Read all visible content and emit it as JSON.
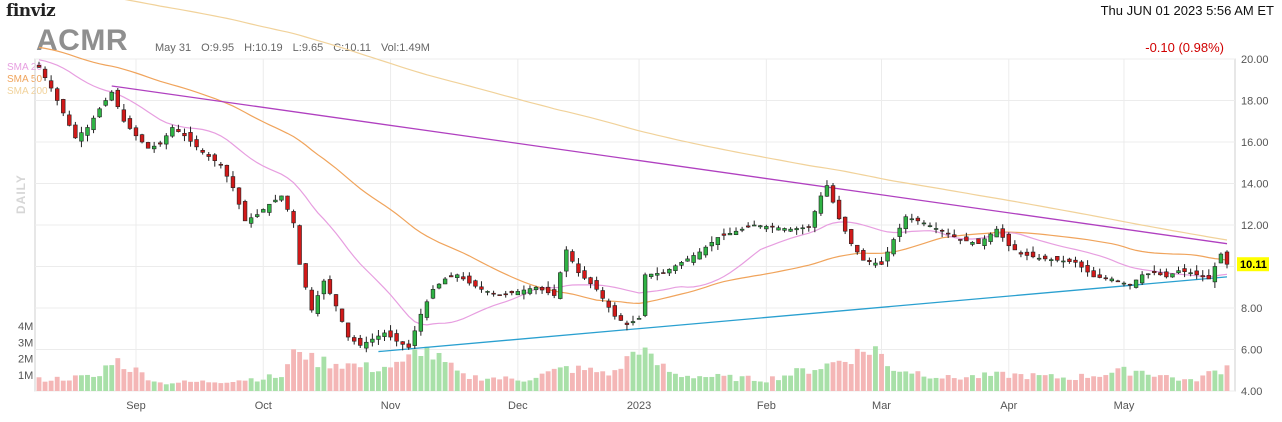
{
  "header": {
    "brand": "finviz",
    "datetime": "Thu JUN 01 2023 5:56 AM ET",
    "ticker": "ACMR",
    "date": "May 31",
    "open": "O:9.95",
    "high": "H:10.19",
    "low": "L:9.65",
    "close": "C:10.11",
    "volume": "Vol:1.49M",
    "change": "-0.10 (0.98%)",
    "change_color": "#d00000"
  },
  "sma_legend": [
    {
      "label": "SMA 20",
      "color": "#e79ee0"
    },
    {
      "label": "SMA 50",
      "color": "#f0a45c"
    },
    {
      "label": "SMA 200",
      "color": "#f1d29a"
    }
  ],
  "interval_label": "DAILY",
  "chart_data": {
    "type": "candlestick",
    "ylim": [
      4,
      20
    ],
    "yticks": [
      "4.00",
      "6.00",
      "8.00",
      "10.00",
      "12.00",
      "14.00",
      "16.00",
      "18.00",
      "20.00"
    ],
    "x_tick_labels": [
      "Sep",
      "Oct",
      "Nov",
      "Dec",
      "2023",
      "Feb",
      "Mar",
      "Apr",
      "May"
    ],
    "x_tick_index": [
      16,
      37,
      58,
      79,
      99,
      120,
      139,
      160,
      179
    ],
    "volume_ticks": [
      "1M",
      "2M",
      "3M",
      "4M"
    ],
    "last_price": "10.11",
    "last_price_color": "#ffff00",
    "up_color": "#2fb344",
    "down_color": "#d21919",
    "grid": true,
    "trendlines": [
      {
        "name": "resistance",
        "color": "#b040c0",
        "from": {
          "index": 12,
          "price": 18.7
        },
        "to": {
          "index": 196,
          "price": 11.1
        }
      },
      {
        "name": "support",
        "color": "#2aa0d0",
        "from": {
          "index": 56,
          "price": 5.9
        },
        "to": {
          "index": 196,
          "price": 9.5
        }
      }
    ],
    "anchors": [
      [
        0,
        19.6
      ],
      [
        2,
        18.6
      ],
      [
        4,
        17.4
      ],
      [
        6,
        16.2
      ],
      [
        8,
        16.7
      ],
      [
        10,
        17.6
      ],
      [
        12,
        18.4
      ],
      [
        14,
        17.0
      ],
      [
        16,
        16.3
      ],
      [
        18,
        15.7
      ],
      [
        20,
        15.9
      ],
      [
        22,
        16.7
      ],
      [
        24,
        16.3
      ],
      [
        27,
        15.5
      ],
      [
        30,
        14.9
      ],
      [
        32,
        13.8
      ],
      [
        34,
        12.2
      ],
      [
        36,
        12.5
      ],
      [
        38,
        13.0
      ],
      [
        40,
        13.4
      ],
      [
        42,
        12.1
      ],
      [
        43,
        10.1
      ],
      [
        45,
        7.9
      ],
      [
        47,
        9.3
      ],
      [
        49,
        8.1
      ],
      [
        51,
        6.6
      ],
      [
        53,
        6.2
      ],
      [
        55,
        6.5
      ],
      [
        57,
        6.8
      ],
      [
        59,
        6.4
      ],
      [
        61,
        6.1
      ],
      [
        63,
        7.7
      ],
      [
        65,
        8.9
      ],
      [
        67,
        9.4
      ],
      [
        69,
        9.6
      ],
      [
        71,
        9.2
      ],
      [
        73,
        8.9
      ],
      [
        76,
        8.6
      ],
      [
        79,
        8.8
      ],
      [
        82,
        9.0
      ],
      [
        85,
        8.6
      ],
      [
        87,
        10.8
      ],
      [
        89,
        9.7
      ],
      [
        92,
        8.9
      ],
      [
        95,
        7.6
      ],
      [
        97,
        7.2
      ],
      [
        99,
        7.5
      ],
      [
        100,
        9.6
      ],
      [
        103,
        9.7
      ],
      [
        106,
        10.2
      ],
      [
        109,
        10.7
      ],
      [
        112,
        11.4
      ],
      [
        115,
        11.7
      ],
      [
        118,
        12.0
      ],
      [
        121,
        11.9
      ],
      [
        124,
        11.8
      ],
      [
        127,
        11.9
      ],
      [
        129,
        13.4
      ],
      [
        130,
        13.9
      ],
      [
        132,
        12.3
      ],
      [
        134,
        11.1
      ],
      [
        136,
        10.3
      ],
      [
        139,
        10.1
      ],
      [
        141,
        11.3
      ],
      [
        143,
        12.4
      ],
      [
        146,
        12.1
      ],
      [
        149,
        11.7
      ],
      [
        152,
        11.3
      ],
      [
        155,
        11.1
      ],
      [
        158,
        11.8
      ],
      [
        160,
        11.0
      ],
      [
        162,
        10.6
      ],
      [
        165,
        10.4
      ],
      [
        168,
        10.3
      ],
      [
        171,
        10.2
      ],
      [
        174,
        9.5
      ],
      [
        177,
        9.4
      ],
      [
        180,
        9.1
      ],
      [
        182,
        9.6
      ],
      [
        184,
        9.7
      ],
      [
        186,
        9.5
      ],
      [
        188,
        9.8
      ],
      [
        190,
        9.7
      ],
      [
        193,
        9.4
      ],
      [
        195,
        10.6
      ],
      [
        196,
        10.11
      ]
    ],
    "volume_anchors": [
      [
        0,
        0.7
      ],
      [
        10,
        0.9
      ],
      [
        12,
        2.0
      ],
      [
        20,
        0.5
      ],
      [
        30,
        0.6
      ],
      [
        40,
        0.9
      ],
      [
        43,
        2.8
      ],
      [
        45,
        1.9
      ],
      [
        50,
        1.7
      ],
      [
        55,
        1.4
      ],
      [
        60,
        1.6
      ],
      [
        63,
        2.7
      ],
      [
        70,
        0.9
      ],
      [
        80,
        0.7
      ],
      [
        87,
        1.4
      ],
      [
        95,
        1.1
      ],
      [
        99,
        2.8
      ],
      [
        101,
        1.9
      ],
      [
        105,
        1.0
      ],
      [
        120,
        0.7
      ],
      [
        130,
        1.6
      ],
      [
        138,
        2.7
      ],
      [
        140,
        1.5
      ],
      [
        150,
        0.8
      ],
      [
        160,
        1.0
      ],
      [
        170,
        0.8
      ],
      [
        181,
        1.3
      ],
      [
        190,
        0.6
      ],
      [
        196,
        1.5
      ]
    ]
  }
}
